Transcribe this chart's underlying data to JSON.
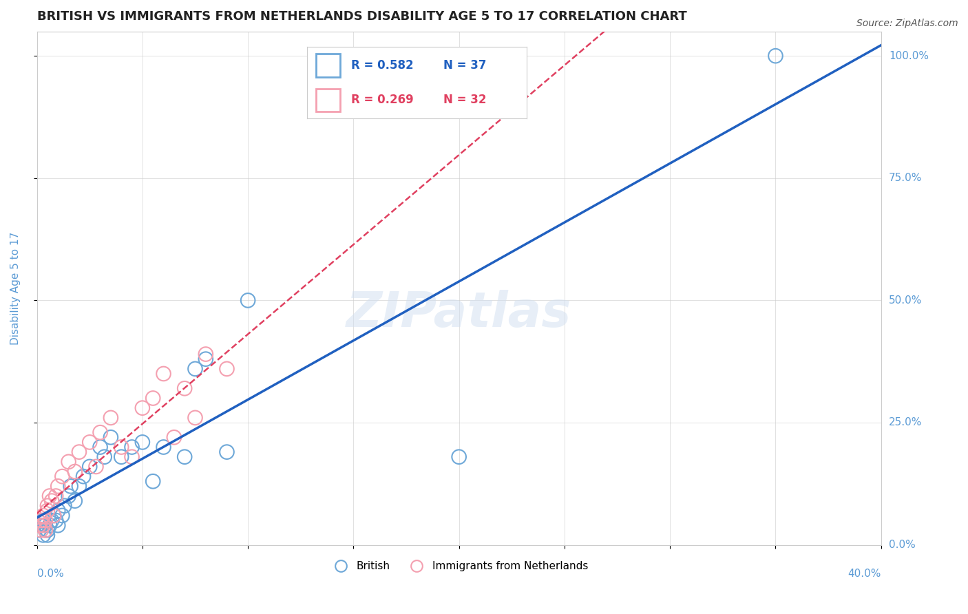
{
  "title": "BRITISH VS IMMIGRANTS FROM NETHERLANDS DISABILITY AGE 5 TO 17 CORRELATION CHART",
  "source": "Source: ZipAtlas.com",
  "ylabel": "Disability Age 5 to 17",
  "ytick_labels": [
    "0.0%",
    "25.0%",
    "50.0%",
    "75.0%",
    "100.0%"
  ],
  "ytick_values": [
    0,
    0.25,
    0.5,
    0.75,
    1.0
  ],
  "xlim": [
    0.0,
    0.4
  ],
  "ylim": [
    0.0,
    1.05
  ],
  "legend_r1": "R = 0.582",
  "legend_n1": "N = 37",
  "legend_r2": "R = 0.269",
  "legend_n2": "N = 32",
  "blue_color": "#6ea8d8",
  "pink_color": "#f4a0b0",
  "blue_line_color": "#2060c0",
  "pink_line_color": "#e04060",
  "background_color": "#ffffff",
  "title_fontsize": 13,
  "source_fontsize": 10,
  "axis_label_color": "#5b9bd5",
  "tick_label_color": "#5b9bd5",
  "british_x": [
    0.001,
    0.002,
    0.003,
    0.003,
    0.004,
    0.004,
    0.005,
    0.005,
    0.006,
    0.007,
    0.008,
    0.009,
    0.01,
    0.01,
    0.012,
    0.013,
    0.015,
    0.016,
    0.018,
    0.02,
    0.022,
    0.025,
    0.03,
    0.032,
    0.035,
    0.04,
    0.045,
    0.05,
    0.055,
    0.06,
    0.07,
    0.075,
    0.08,
    0.09,
    0.1,
    0.2,
    0.35
  ],
  "british_y": [
    0.03,
    0.04,
    0.02,
    0.05,
    0.03,
    0.04,
    0.02,
    0.03,
    0.04,
    0.05,
    0.06,
    0.05,
    0.07,
    0.04,
    0.06,
    0.08,
    0.1,
    0.12,
    0.09,
    0.12,
    0.14,
    0.16,
    0.2,
    0.18,
    0.22,
    0.18,
    0.2,
    0.21,
    0.13,
    0.2,
    0.18,
    0.36,
    0.38,
    0.19,
    0.5,
    0.18,
    1.0
  ],
  "netherlands_x": [
    0.001,
    0.002,
    0.002,
    0.003,
    0.003,
    0.004,
    0.004,
    0.005,
    0.005,
    0.006,
    0.007,
    0.008,
    0.009,
    0.01,
    0.012,
    0.015,
    0.018,
    0.02,
    0.025,
    0.028,
    0.03,
    0.035,
    0.04,
    0.045,
    0.05,
    0.055,
    0.06,
    0.065,
    0.07,
    0.075,
    0.08,
    0.09
  ],
  "netherlands_y": [
    0.04,
    0.03,
    0.05,
    0.04,
    0.06,
    0.05,
    0.03,
    0.07,
    0.08,
    0.1,
    0.09,
    0.06,
    0.1,
    0.12,
    0.14,
    0.17,
    0.15,
    0.19,
    0.21,
    0.16,
    0.23,
    0.26,
    0.2,
    0.18,
    0.28,
    0.3,
    0.35,
    0.22,
    0.32,
    0.26,
    0.39,
    0.36
  ]
}
